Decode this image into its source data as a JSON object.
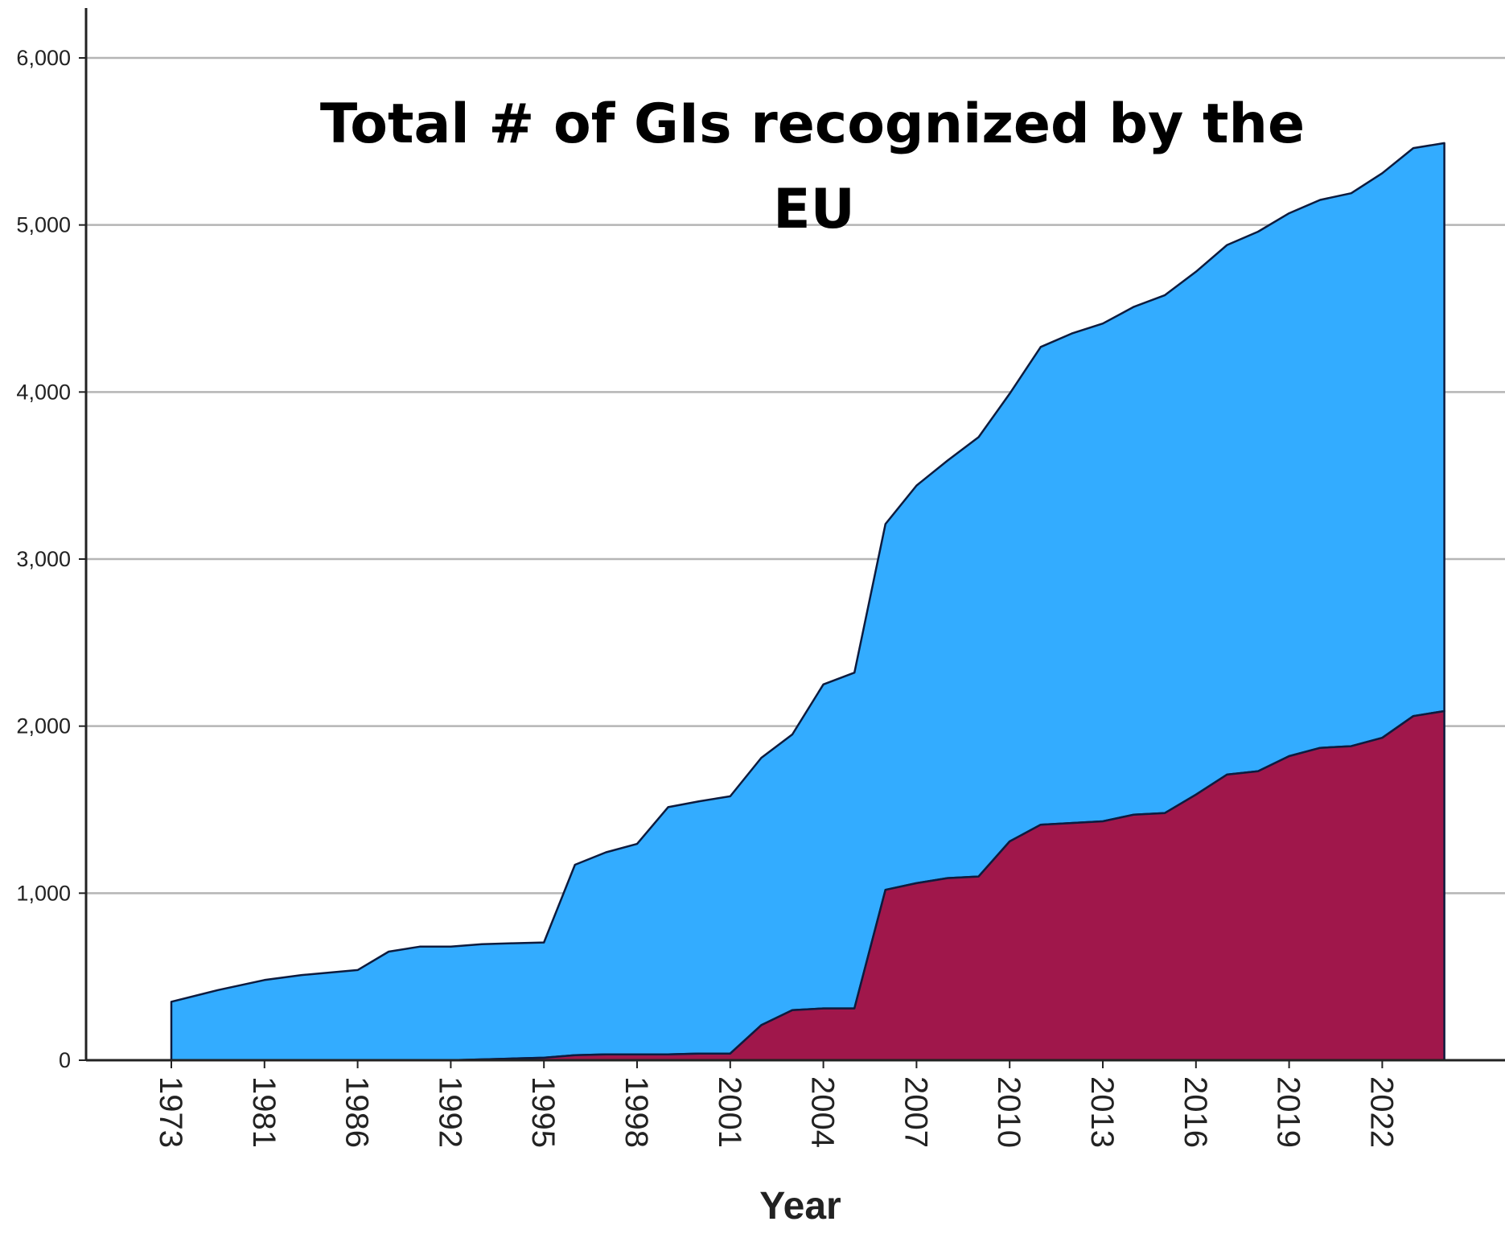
{
  "chart_data": {
    "type": "area",
    "stacked": true,
    "title_lines": [
      "Total # of GIs recognized by the",
      "EU"
    ],
    "xlabel": "Year",
    "ylabel": "",
    "ylim": [
      0,
      6000
    ],
    "yticks": [
      0,
      1000,
      2000,
      3000,
      4000,
      5000,
      6000
    ],
    "ytick_labels": [
      "0",
      "1,000",
      "2,000",
      "3,000",
      "4,000",
      "5,000",
      "6,000"
    ],
    "xtick_labels": [
      "1973",
      "1981",
      "1986",
      "1992",
      "1995",
      "1998",
      "2001",
      "2004",
      "2007",
      "2010",
      "2013",
      "2016",
      "2019",
      "2022"
    ],
    "grid": true,
    "legend": "none",
    "colors": {
      "lower": "#a0174b",
      "upper": "#33acff",
      "outline": "#0d1b3e",
      "grid": "#b5b5b5",
      "axis": "#222222"
    },
    "x": [
      1973,
      1977,
      1981,
      1983,
      1986,
      1988,
      1990,
      1992,
      1993,
      1994,
      1995,
      1996,
      1997,
      1998,
      1999,
      2000,
      2001,
      2002,
      2003,
      2004,
      2005,
      2006,
      2007,
      2008,
      2009,
      2010,
      2011,
      2012,
      2013,
      2014,
      2015,
      2016,
      2017,
      2018,
      2019,
      2020,
      2021,
      2022,
      2023,
      2024
    ],
    "series": [
      {
        "values": [
          0,
          0,
          0,
          0,
          0,
          0,
          0,
          0,
          5,
          10,
          15,
          30,
          35,
          35,
          35,
          40,
          40,
          210,
          300,
          310,
          310,
          1020,
          1060,
          1090,
          1100,
          1310,
          1410,
          1420,
          1430,
          1470,
          1480,
          1590,
          1710,
          1730,
          1820,
          1870,
          1880,
          1930,
          2060,
          2090
        ]
      },
      {
        "values": [
          350,
          420,
          480,
          510,
          540,
          650,
          680,
          680,
          690,
          690,
          690,
          1140,
          1210,
          1260,
          1480,
          1510,
          1540,
          1600,
          1650,
          1940,
          2010,
          2190,
          2380,
          2500,
          2630,
          2680,
          2860,
          2930,
          2980,
          3040,
          3100,
          3130,
          3170,
          3230,
          3250,
          3280,
          3310,
          3380,
          3400,
          3400
        ]
      }
    ]
  }
}
